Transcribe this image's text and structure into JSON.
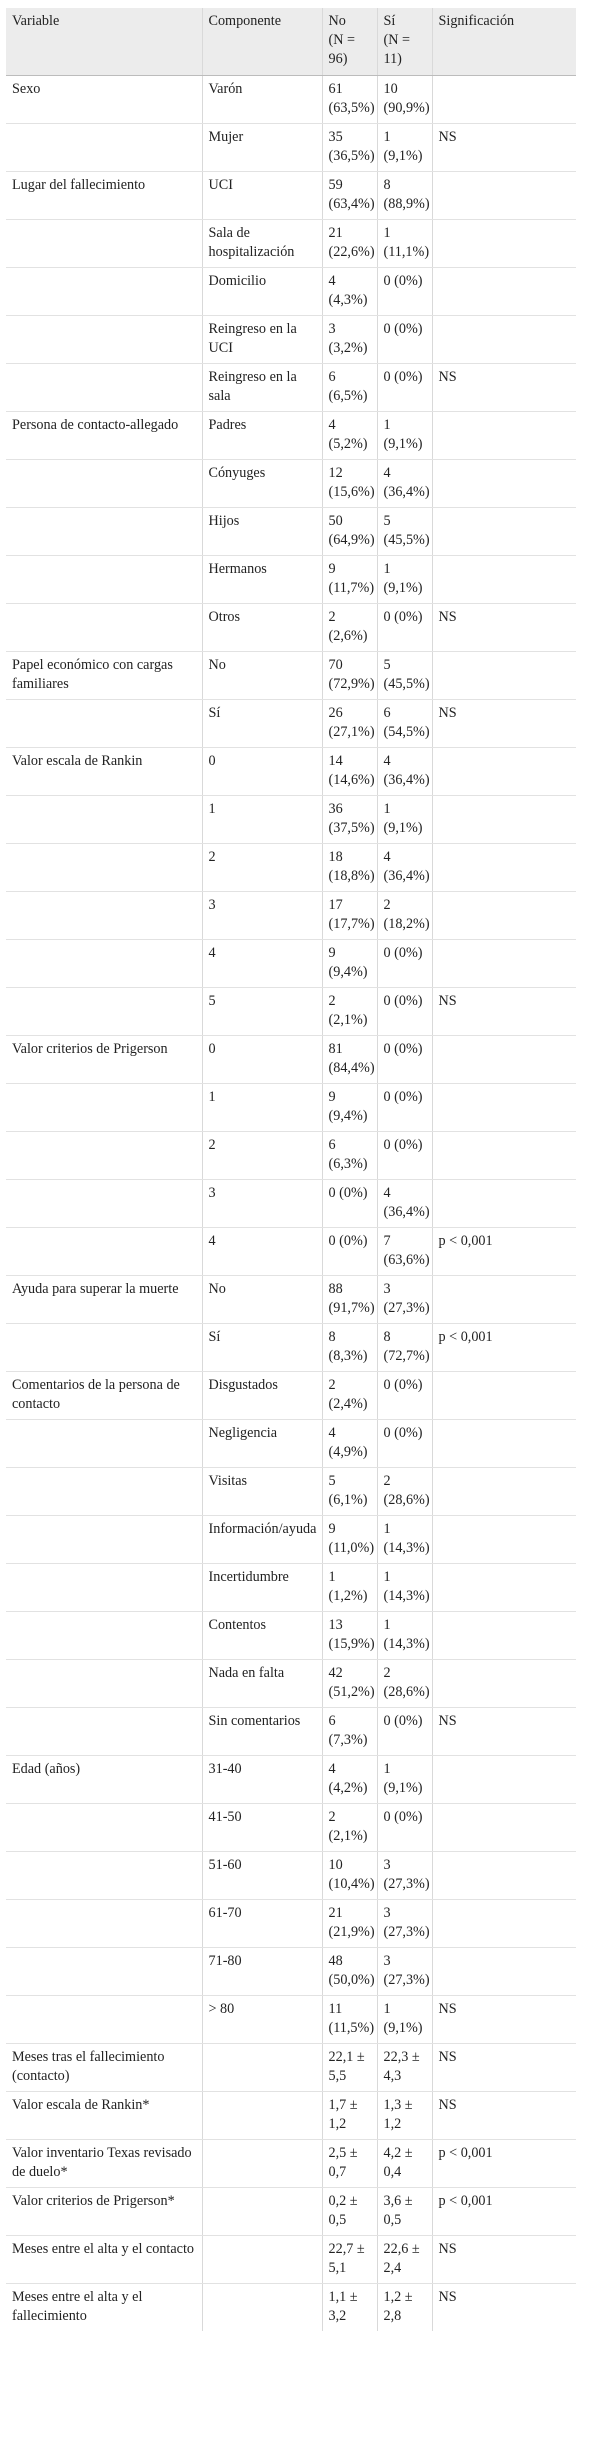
{
  "table": {
    "headers": {
      "variable": "Variable",
      "componente": "Componente",
      "no": "No",
      "no_n": "(N = 96)",
      "si": "Sí",
      "si_n": "(N = 11)",
      "significacion": "Significación"
    },
    "rows": [
      {
        "variable": "Sexo",
        "componente": "Varón",
        "no": [
          "61",
          "(63,5%)"
        ],
        "si": [
          "10",
          "(90,9%)"
        ],
        "sig": ""
      },
      {
        "variable": "",
        "componente": "Mujer",
        "no": [
          "35",
          "(36,5%)"
        ],
        "si": [
          "1",
          "(9,1%)"
        ],
        "sig": "NS"
      },
      {
        "variable": "Lugar del fallecimiento",
        "componente": "UCI",
        "no": [
          "59",
          "(63,4%)"
        ],
        "si": [
          "8",
          "(88,9%)"
        ],
        "sig": ""
      },
      {
        "variable": "",
        "componente": "Sala de hospitalización",
        "no": [
          "21",
          "(22,6%)"
        ],
        "si": [
          "1",
          "(11,1%)"
        ],
        "sig": ""
      },
      {
        "variable": "",
        "componente": "Domicilio",
        "no": [
          "4",
          "(4,3%)"
        ],
        "si": [
          "0 (0%)"
        ],
        "sig": ""
      },
      {
        "variable": "",
        "componente": "Reingreso en la UCI",
        "no": [
          "3",
          "(3,2%)"
        ],
        "si": [
          "0 (0%)"
        ],
        "sig": ""
      },
      {
        "variable": "",
        "componente": "Reingreso en la sala",
        "no": [
          "6",
          "(6,5%)"
        ],
        "si": [
          "0 (0%)"
        ],
        "sig": "NS"
      },
      {
        "variable": "Persona de contacto-allegado",
        "componente": "Padres",
        "no": [
          "4",
          "(5,2%)"
        ],
        "si": [
          "1",
          "(9,1%)"
        ],
        "sig": ""
      },
      {
        "variable": "",
        "componente": "Cónyuges",
        "no": [
          "12",
          "(15,6%)"
        ],
        "si": [
          "4",
          "(36,4%)"
        ],
        "sig": ""
      },
      {
        "variable": "",
        "componente": "Hijos",
        "no": [
          "50",
          "(64,9%)"
        ],
        "si": [
          "5",
          "(45,5%)"
        ],
        "sig": ""
      },
      {
        "variable": "",
        "componente": "Hermanos",
        "no": [
          "9",
          "(11,7%)"
        ],
        "si": [
          "1",
          "(9,1%)"
        ],
        "sig": ""
      },
      {
        "variable": "",
        "componente": "Otros",
        "no": [
          "2",
          "(2,6%)"
        ],
        "si": [
          "0 (0%)"
        ],
        "sig": "NS"
      },
      {
        "variable": "Papel económico con cargas familiares",
        "componente": "No",
        "no": [
          "70",
          "(72,9%)"
        ],
        "si": [
          "5",
          "(45,5%)"
        ],
        "sig": ""
      },
      {
        "variable": "",
        "componente": "Sí",
        "no": [
          "26",
          "(27,1%)"
        ],
        "si": [
          "6",
          "(54,5%)"
        ],
        "sig": "NS"
      },
      {
        "variable": "Valor escala de Rankin",
        "componente": "0",
        "no": [
          "14",
          "(14,6%)"
        ],
        "si": [
          "4",
          "(36,4%)"
        ],
        "sig": ""
      },
      {
        "variable": "",
        "componente": "1",
        "no": [
          "36",
          "(37,5%)"
        ],
        "si": [
          "1",
          "(9,1%)"
        ],
        "sig": ""
      },
      {
        "variable": "",
        "componente": "2",
        "no": [
          "18",
          "(18,8%)"
        ],
        "si": [
          "4",
          "(36,4%)"
        ],
        "sig": ""
      },
      {
        "variable": "",
        "componente": "3",
        "no": [
          "17",
          "(17,7%)"
        ],
        "si": [
          "2",
          "(18,2%)"
        ],
        "sig": ""
      },
      {
        "variable": "",
        "componente": "4",
        "no": [
          "9",
          "(9,4%)"
        ],
        "si": [
          "0 (0%)"
        ],
        "sig": ""
      },
      {
        "variable": "",
        "componente": "5",
        "no": [
          "2",
          "(2,1%)"
        ],
        "si": [
          "0 (0%)"
        ],
        "sig": "NS"
      },
      {
        "variable": "Valor criterios de Prigerson",
        "componente": "0",
        "no": [
          "81",
          "(84,4%)"
        ],
        "si": [
          "0 (0%)"
        ],
        "sig": ""
      },
      {
        "variable": "",
        "componente": "1",
        "no": [
          "9",
          "(9,4%)"
        ],
        "si": [
          "0 (0%)"
        ],
        "sig": ""
      },
      {
        "variable": "",
        "componente": "2",
        "no": [
          "6",
          "(6,3%)"
        ],
        "si": [
          "0 (0%)"
        ],
        "sig": ""
      },
      {
        "variable": "",
        "componente": "3",
        "no": [
          "0 (0%)"
        ],
        "si": [
          "4",
          "(36,4%)"
        ],
        "sig": ""
      },
      {
        "variable": "",
        "componente": "4",
        "no": [
          "0 (0%)"
        ],
        "si": [
          "7",
          "(63,6%)"
        ],
        "sig": "p < 0,001"
      },
      {
        "variable": "Ayuda para superar la muerte",
        "componente": "No",
        "no": [
          "88",
          "(91,7%)"
        ],
        "si": [
          "3",
          "(27,3%)"
        ],
        "sig": ""
      },
      {
        "variable": "",
        "componente": "Sí",
        "no": [
          "8",
          "(8,3%)"
        ],
        "si": [
          "8",
          "(72,7%)"
        ],
        "sig": "p < 0,001"
      },
      {
        "variable": "Comentarios de la persona de contacto",
        "componente": "Disgustados",
        "no": [
          "2",
          "(2,4%)"
        ],
        "si": [
          "0 (0%)"
        ],
        "sig": ""
      },
      {
        "variable": "",
        "componente": "Negligencia",
        "no": [
          "4",
          "(4,9%)"
        ],
        "si": [
          "0 (0%)"
        ],
        "sig": ""
      },
      {
        "variable": "",
        "componente": "Visitas",
        "no": [
          "5",
          "(6,1%)"
        ],
        "si": [
          "2",
          "(28,6%)"
        ],
        "sig": ""
      },
      {
        "variable": "",
        "componente": "Información/ayuda",
        "no": [
          "9",
          "(11,0%)"
        ],
        "si": [
          "1",
          "(14,3%)"
        ],
        "sig": ""
      },
      {
        "variable": "",
        "componente": "Incertidumbre",
        "no": [
          "1",
          "(1,2%)"
        ],
        "si": [
          "1",
          "(14,3%)"
        ],
        "sig": ""
      },
      {
        "variable": "",
        "componente": "Contentos",
        "no": [
          "13",
          "(15,9%)"
        ],
        "si": [
          "1",
          "(14,3%)"
        ],
        "sig": ""
      },
      {
        "variable": "",
        "componente": "Nada en falta",
        "no": [
          "42",
          "(51,2%)"
        ],
        "si": [
          "2",
          "(28,6%)"
        ],
        "sig": ""
      },
      {
        "variable": "",
        "componente": "Sin comentarios",
        "no": [
          "6",
          "(7,3%)"
        ],
        "si": [
          "0 (0%)"
        ],
        "sig": "NS"
      },
      {
        "variable": "Edad (años)",
        "componente": "31-40",
        "no": [
          "4",
          "(4,2%)"
        ],
        "si": [
          "1",
          "(9,1%)"
        ],
        "sig": ""
      },
      {
        "variable": "",
        "componente": "41-50",
        "no": [
          "2",
          "(2,1%)"
        ],
        "si": [
          "0 (0%)"
        ],
        "sig": ""
      },
      {
        "variable": "",
        "componente": "51-60",
        "no": [
          "10",
          "(10,4%)"
        ],
        "si": [
          "3",
          "(27,3%)"
        ],
        "sig": ""
      },
      {
        "variable": "",
        "componente": "61-70",
        "no": [
          "21",
          "(21,9%)"
        ],
        "si": [
          "3",
          "(27,3%)"
        ],
        "sig": ""
      },
      {
        "variable": "",
        "componente": "71-80",
        "no": [
          "48",
          "(50,0%)"
        ],
        "si": [
          "3",
          "(27,3%)"
        ],
        "sig": ""
      },
      {
        "variable": "",
        "componente": "> 80",
        "no": [
          "11",
          "(11,5%)"
        ],
        "si": [
          "1",
          "(9,1%)"
        ],
        "sig": "NS"
      },
      {
        "variable": "Meses tras el fallecimiento (contacto)",
        "componente": "",
        "no": [
          "22,1 ±",
          "5,5"
        ],
        "si": [
          "22,3 ±",
          "4,3"
        ],
        "sig": "NS"
      },
      {
        "variable": "Valor escala de Rankin*",
        "componente": "",
        "no": [
          "1,7 ±",
          "1,2"
        ],
        "si": [
          "1,3 ±",
          "1,2"
        ],
        "sig": "NS"
      },
      {
        "variable": "Valor inventario Texas revisado de duelo*",
        "componente": "",
        "no": [
          "2,5 ±",
          "0,7"
        ],
        "si": [
          "4,2 ±",
          "0,4"
        ],
        "sig": "p < 0,001"
      },
      {
        "variable": "Valor criterios de Prigerson*",
        "componente": "",
        "no": [
          "0,2 ±",
          "0,5"
        ],
        "si": [
          "3,6 ±",
          "0,5"
        ],
        "sig": "p < 0,001"
      },
      {
        "variable": "Meses entre el alta y el contacto",
        "componente": "",
        "no": [
          "22,7 ±",
          "5,1"
        ],
        "si": [
          "22,6 ±",
          "2,4"
        ],
        "sig": "NS"
      },
      {
        "variable": "Meses entre el alta y el fallecimiento",
        "componente": "",
        "no": [
          "1,1 ±",
          "3,2"
        ],
        "si": [
          "1,2 ±",
          "2,8"
        ],
        "sig": "NS"
      }
    ]
  }
}
